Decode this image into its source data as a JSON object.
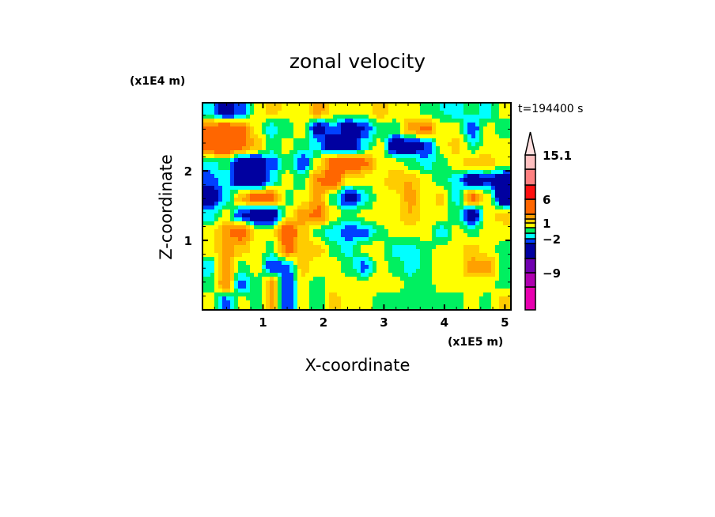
{
  "chart_data": {
    "type": "heatmap",
    "title": "zonal velocity",
    "xlabel": "X-coordinate",
    "ylabel": "Z-coordinate",
    "x_scale_label": "(x1E5 m)",
    "y_scale_label": "(x1E4 m)",
    "time_label": "t=194400 s",
    "xlim": [
      0,
      5.1
    ],
    "ylim": [
      0,
      2.98
    ],
    "x_ticks": [
      "1",
      "2",
      "3",
      "4",
      "5"
    ],
    "x_tick_values": [
      1,
      2,
      3,
      4,
      5
    ],
    "y_ticks": [
      "1",
      "2"
    ],
    "y_tick_values": [
      1,
      2
    ],
    "colorbar": {
      "levels": [
        -12,
        -9,
        -6,
        -3,
        -2,
        -1,
        0,
        1,
        2,
        3,
        6,
        9,
        12,
        15.1
      ],
      "colors": [
        "#e800b0",
        "#b000b0",
        "#7000b0",
        "#0000a0",
        "#0040ff",
        "#00ffff",
        "#00f060",
        "#ffff00",
        "#ffcc00",
        "#ffa000",
        "#ff6600",
        "#ff1010",
        "#ff8080",
        "#ffc0c0",
        "#ffe0e0"
      ],
      "labels": [
        "15.1",
        "6",
        "1",
        "-2",
        "-9"
      ],
      "label_values": [
        15.1,
        6,
        1,
        -2,
        -9
      ]
    },
    "grid_note_units": "m/s",
    "grid": [
      [
        -1.5,
        -4.5,
        -2.5,
        0.5,
        1.5,
        0.5,
        0.2,
        2.5,
        0.5,
        0.5,
        0.5,
        1.5,
        0.5,
        0.5,
        -0.5,
        -1.0,
        -1.5,
        -0.5,
        -1.5,
        0.5
      ],
      [
        3.5,
        4.5,
        3.5,
        0.5,
        -1.5,
        -0.5,
        0.5,
        -4.0,
        -2.0,
        -4.5,
        -3.0,
        -0.5,
        -0.5,
        2.5,
        3.5,
        0.5,
        0.5,
        -3.0,
        0.5,
        -0.5
      ],
      [
        4.5,
        5.5,
        3.5,
        2.0,
        -0.5,
        0.5,
        -0.5,
        -1.5,
        -4.5,
        -4.5,
        -1.5,
        0.5,
        -4.5,
        -4.5,
        -3.0,
        0.5,
        1.5,
        -1.0,
        0.5,
        0.5
      ],
      [
        -1.5,
        -0.5,
        -4.5,
        -4.5,
        -2.5,
        -0.5,
        -3.0,
        0.5,
        4.0,
        5.0,
        3.5,
        0.5,
        0.5,
        -0.5,
        -1.5,
        -0.5,
        0.5,
        2.0,
        1.5,
        0.5
      ],
      [
        -2.5,
        -1.5,
        -4.5,
        -4.5,
        -1.5,
        0.5,
        -0.5,
        3.0,
        4.0,
        0.5,
        0.5,
        0.5,
        2.0,
        2.0,
        0.5,
        -0.5,
        -1.5,
        -4.5,
        -3.0,
        -4.5
      ],
      [
        -5.0,
        -1.5,
        2.0,
        4.0,
        3.5,
        -0.5,
        0.5,
        2.5,
        -0.5,
        -4.0,
        -1.5,
        0.5,
        0.5,
        2.5,
        0.5,
        1.5,
        -1.5,
        3.5,
        0.5,
        -5.0
      ],
      [
        -1.5,
        0.5,
        -3.0,
        -4.5,
        -4.5,
        0.5,
        2.5,
        3.5,
        0.5,
        -0.5,
        0.5,
        0.5,
        0.5,
        2.0,
        0.5,
        0.5,
        -0.5,
        -4.5,
        0.5,
        1.5
      ],
      [
        0.5,
        2.5,
        4.0,
        0.5,
        0.5,
        5.0,
        1.5,
        -0.5,
        -1.5,
        -2.5,
        -2.5,
        -0.5,
        0.5,
        0.5,
        0.5,
        -1.5,
        0.5,
        -0.5,
        0.5,
        0.5
      ],
      [
        0.5,
        2.5,
        1.5,
        0.5,
        -0.5,
        3.5,
        1.5,
        1.5,
        -0.5,
        -1.5,
        0.5,
        0.5,
        -1.5,
        -1.5,
        -0.5,
        0.5,
        0.5,
        1.5,
        0.5,
        -0.5
      ],
      [
        -1.5,
        3.0,
        -0.5,
        0.5,
        -3.0,
        -2.5,
        1.5,
        0.5,
        0.5,
        -0.5,
        -2.5,
        0.5,
        -0.5,
        -1.5,
        -0.5,
        0.5,
        0.5,
        2.5,
        2.5,
        -0.5
      ],
      [
        -0.5,
        3.0,
        -2.5,
        -0.5,
        2.5,
        -3.0,
        0.5,
        -0.5,
        0.5,
        0.5,
        0.5,
        0.5,
        0.5,
        -0.5,
        -0.5,
        0.5,
        0.5,
        0.5,
        0.5,
        -0.5
      ],
      [
        0.5,
        -2.5,
        0.5,
        -0.5,
        2.5,
        -3.0,
        0.5,
        -0.5,
        1.5,
        0.5,
        0.5,
        -0.5,
        -0.5,
        -0.5,
        -0.5,
        -0.5,
        -0.5,
        0.5,
        -0.5,
        1.5
      ]
    ]
  }
}
